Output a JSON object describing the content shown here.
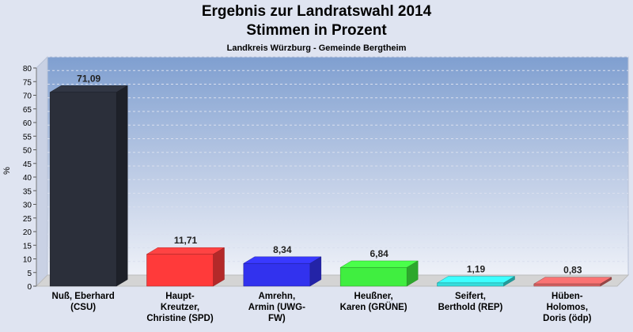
{
  "chart_data": {
    "type": "bar",
    "title": "Ergebnis zur Landratswahl 2014",
    "title2": "Stimmen in Prozent",
    "subtitle": "Landkreis Würzburg - Gemeinde Bergtheim",
    "ylabel": "%",
    "ylim": [
      0,
      80
    ],
    "yticks": [
      0,
      5,
      10,
      15,
      20,
      25,
      30,
      35,
      40,
      45,
      50,
      55,
      60,
      65,
      70,
      75,
      80
    ],
    "categories": [
      [
        "Nuß, Eberhard",
        "(CSU)"
      ],
      [
        "Haupt-",
        "Kreutzer,",
        "Christine (SPD)"
      ],
      [
        "Amrehn,",
        "Armin (UWG-",
        "FW)"
      ],
      [
        "Heußner,",
        "Karen (GRÜNE)"
      ],
      [
        "Seifert,",
        "Berthold (REP)"
      ],
      [
        "Hüben-",
        "Holomos,",
        "Doris (ödp)"
      ]
    ],
    "values": [
      71.09,
      11.71,
      8.34,
      6.84,
      1.19,
      0.83
    ],
    "value_labels": [
      "71,09",
      "11,71",
      "8,34",
      "6,84",
      "1,19",
      "0,83"
    ],
    "colors": [
      "#2b2f3a",
      "#ff3a3a",
      "#3232ee",
      "#40ee40",
      "#34dede",
      "#d96464"
    ],
    "grid": true,
    "legend": "none"
  }
}
